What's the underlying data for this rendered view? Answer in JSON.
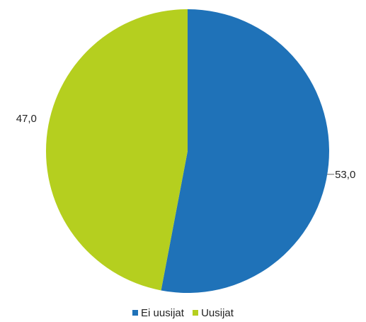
{
  "chart_data": {
    "type": "pie",
    "categories": [
      "Ei uusijat",
      "Uusijat"
    ],
    "values": [
      53.0,
      47.0
    ],
    "data_labels": [
      "53,0",
      "47,0"
    ],
    "colors": [
      "#1f72b8",
      "#b5cf1f"
    ],
    "start_angle": "12 o'clock",
    "direction": "clockwise",
    "legend": {
      "position": "bottom",
      "entries": [
        "Ei uusijat",
        "Uusijat"
      ]
    }
  }
}
